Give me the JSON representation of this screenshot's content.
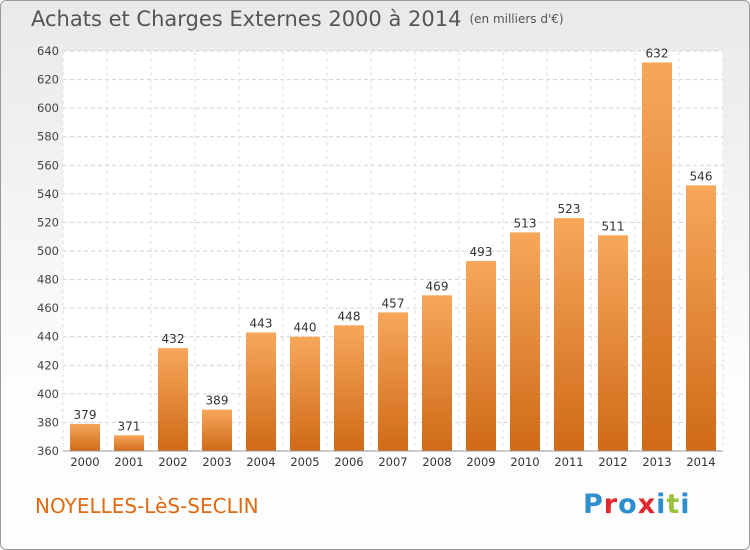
{
  "title": "Achats et Charges Externes 2000 à 2014",
  "unit": "(en milliers d'€)",
  "commune": "NOYELLES-LèS-SECLIN",
  "logo": {
    "text": "Proxiti",
    "letters": [
      "P",
      "r",
      "o",
      "x",
      "i",
      "t",
      "i"
    ],
    "colors": [
      "#2e8fcf",
      "#e0282e",
      "#2e8fcf",
      "#e0282e",
      "#2e8fcf",
      "#9ac43c",
      "#2e8fcf"
    ]
  },
  "colors": {
    "bar_top": "#f7a75a",
    "bar_bottom": "#cf6a18",
    "accent": "#e06a10"
  },
  "chart_data": {
    "type": "bar",
    "categories": [
      "2000",
      "2001",
      "2002",
      "2003",
      "2004",
      "2005",
      "2006",
      "2007",
      "2008",
      "2009",
      "2010",
      "2011",
      "2012",
      "2013",
      "2014"
    ],
    "values": [
      379,
      371,
      432,
      389,
      443,
      440,
      448,
      457,
      469,
      493,
      513,
      523,
      511,
      632,
      546
    ],
    "ylim": [
      360,
      640
    ],
    "yticks": [
      360,
      380,
      400,
      420,
      440,
      460,
      480,
      500,
      520,
      540,
      560,
      580,
      600,
      620,
      640
    ],
    "grid": true,
    "xlabel": "",
    "ylabel": ""
  }
}
